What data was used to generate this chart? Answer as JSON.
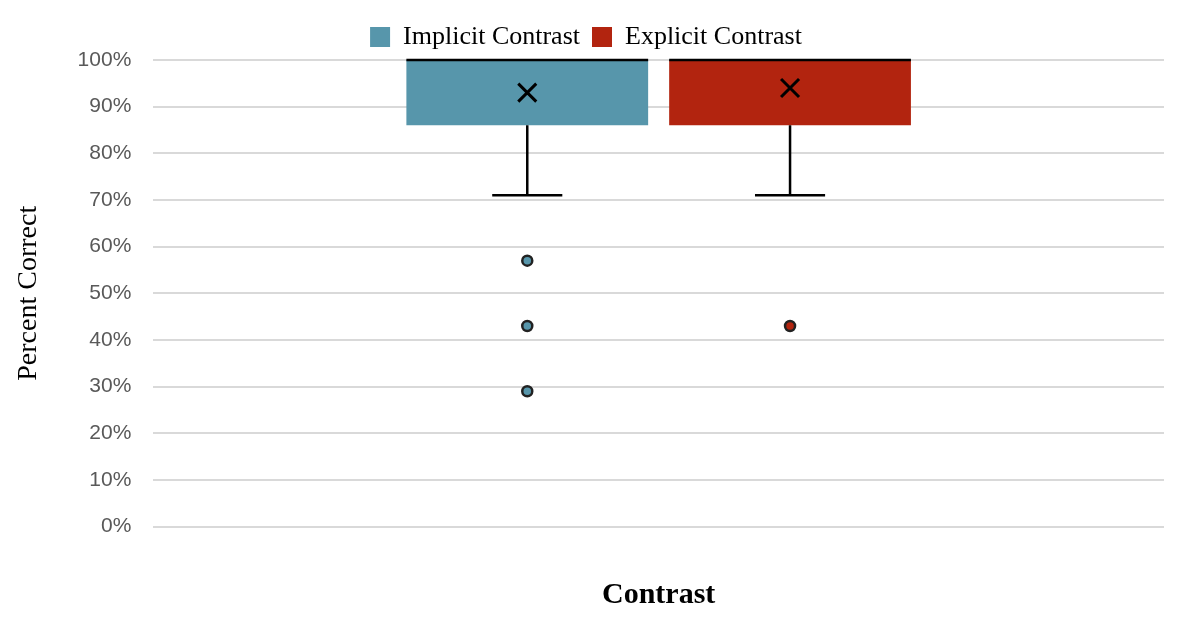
{
  "chart_data": {
    "type": "box",
    "xlabel": "Contrast",
    "ylabel": "Percent Correct",
    "legend": "top",
    "grid": "y",
    "categories": [
      null
    ],
    "ylim": [
      0,
      100
    ],
    "yticks": [
      {
        "value": 0,
        "label": "0%"
      },
      {
        "value": 10,
        "label": "10%"
      },
      {
        "value": 20,
        "label": "20%"
      },
      {
        "value": 30,
        "label": "30%"
      },
      {
        "value": 40,
        "label": "40%"
      },
      {
        "value": 50,
        "label": "50%"
      },
      {
        "value": 60,
        "label": "60%"
      },
      {
        "value": 70,
        "label": "70%"
      },
      {
        "value": 80,
        "label": "80%"
      },
      {
        "value": 90,
        "label": "90%"
      },
      {
        "value": 100,
        "label": "100%"
      }
    ],
    "series": [
      {
        "name": "Implicit Contrast",
        "color": "#5796ab",
        "boxes": [
          {
            "low": 71,
            "q1": 86,
            "median": 100,
            "q3": 100,
            "high": 100,
            "mean": 93,
            "outliers": [
              57,
              43,
              29
            ]
          }
        ]
      },
      {
        "name": "Explicit Contrast",
        "color": "#b2240f",
        "boxes": [
          {
            "low": 71,
            "q1": 86,
            "median": 100,
            "q3": 100,
            "high": 100,
            "mean": 94,
            "outliers": [
              43
            ]
          }
        ]
      }
    ]
  }
}
